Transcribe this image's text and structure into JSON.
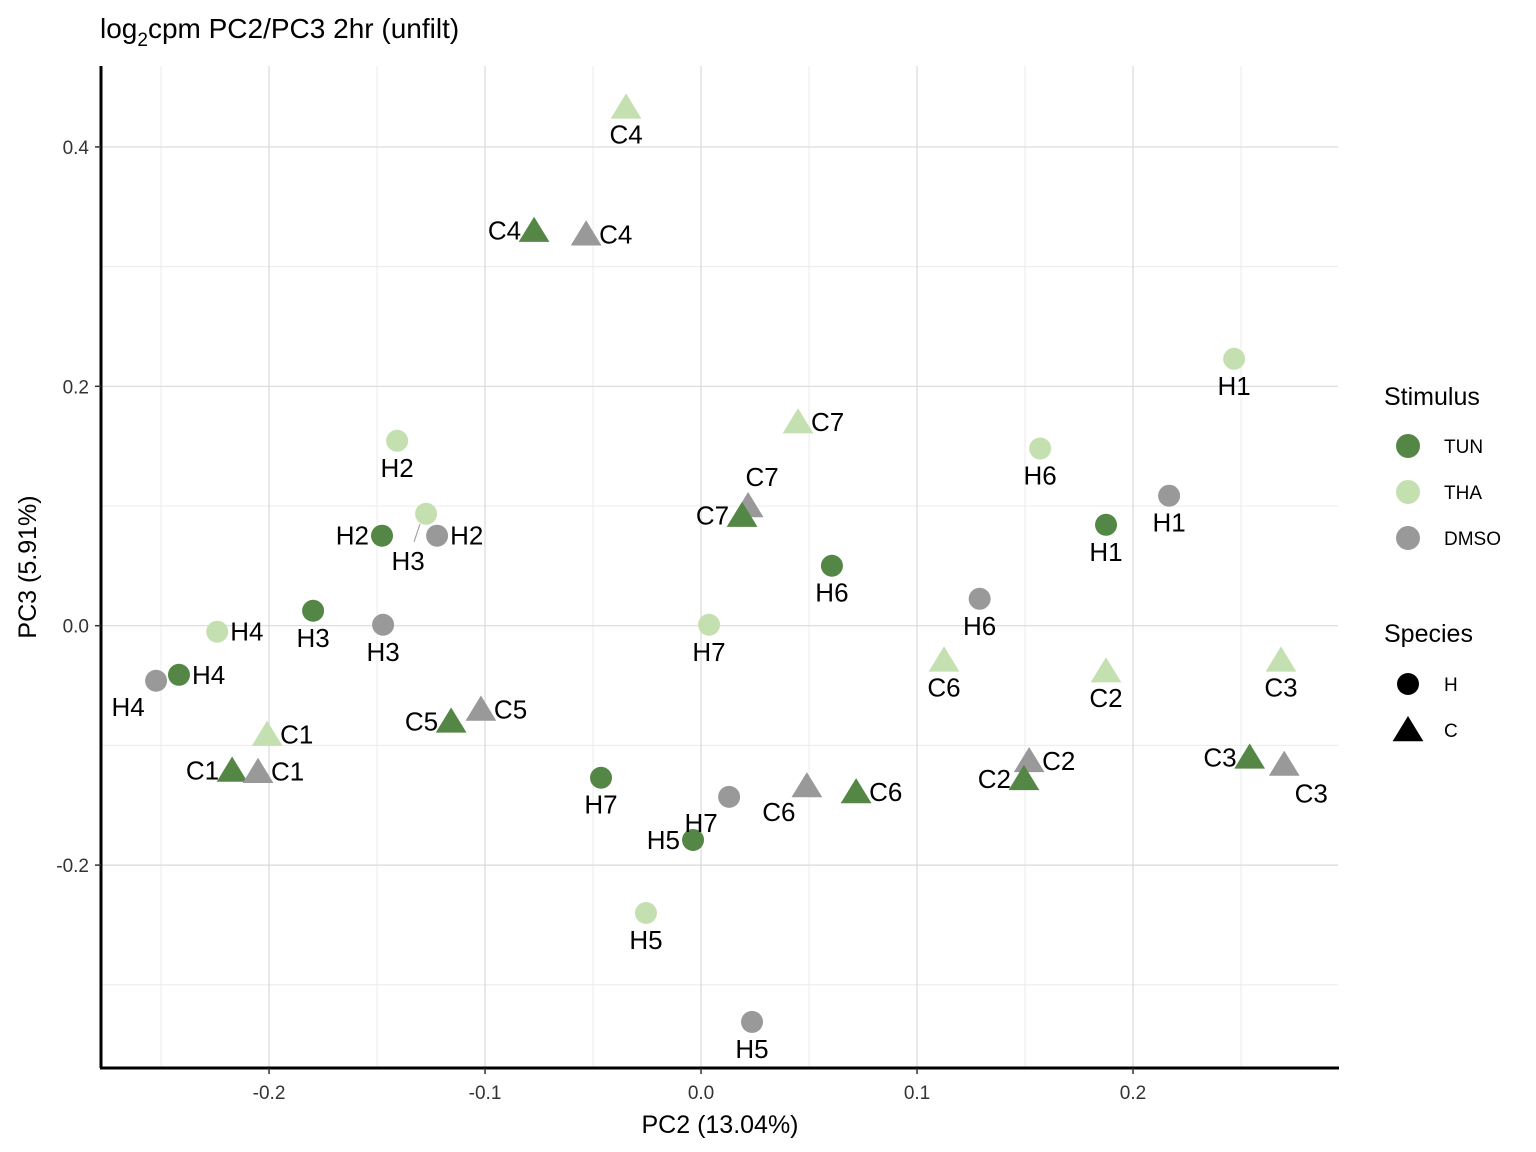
{
  "chart_data": {
    "type": "scatter",
    "title_prefix": "log",
    "title_sub": "2",
    "title_rest": "cpm PC2/PC3 2hr (unfilt)",
    "xlabel": "PC2 (13.04%)",
    "ylabel": "PC3 (5.91%)",
    "xlim": [
      -0.2778,
      0.2949
    ],
    "ylim": [
      -0.3695,
      0.4676
    ],
    "xticks": [
      -0.2,
      -0.1,
      0.0,
      0.1,
      0.2
    ],
    "xtick_labels": [
      "-0.2",
      "-0.1",
      "0.0",
      "0.1",
      "0.2"
    ],
    "yticks": [
      -0.2,
      0.0,
      0.2,
      0.4
    ],
    "ytick_labels": [
      "-0.2",
      "0.0",
      "0.2",
      "0.4"
    ],
    "grid": true,
    "legend_placement": "right",
    "legend": {
      "stimulus_title": "Stimulus",
      "stimulus": [
        {
          "name": "TUN",
          "color": "#548745"
        },
        {
          "name": "THA",
          "color": "#c5e0b0"
        },
        {
          "name": "DMSO",
          "color": "#999999"
        }
      ],
      "species_title": "Species",
      "species": [
        {
          "name": "H",
          "shape": "circle"
        },
        {
          "name": "C",
          "shape": "triangle"
        }
      ]
    },
    "points": [
      {
        "label": "C4",
        "stimulus": "THA",
        "species": "C",
        "x": -0.0347,
        "y": 0.433,
        "label_pos": "below"
      },
      {
        "label": "C4",
        "stimulus": "TUN",
        "species": "C",
        "x": -0.0773,
        "y": 0.33,
        "label_pos": "left"
      },
      {
        "label": "C4",
        "stimulus": "DMSO",
        "species": "C",
        "x": -0.0532,
        "y": 0.327,
        "label_pos": "right"
      },
      {
        "label": "H1",
        "stimulus": "THA",
        "species": "H",
        "x": 0.2468,
        "y": 0.223,
        "label_pos": "below"
      },
      {
        "label": "C7",
        "stimulus": "THA",
        "species": "C",
        "x": 0.0449,
        "y": 0.17,
        "label_pos": "right"
      },
      {
        "label": "H6",
        "stimulus": "THA",
        "species": "H",
        "x": 0.157,
        "y": 0.148,
        "label_pos": "below"
      },
      {
        "label": "H1",
        "stimulus": "DMSO",
        "species": "H",
        "x": 0.2167,
        "y": 0.1086,
        "label_pos": "below"
      },
      {
        "label": "H1",
        "stimulus": "TUN",
        "species": "H",
        "x": 0.1875,
        "y": 0.0843,
        "label_pos": "below"
      },
      {
        "label": "H2",
        "stimulus": "THA",
        "species": "H",
        "x": -0.1407,
        "y": 0.1545,
        "label_pos": "below"
      },
      {
        "label": "H3",
        "stimulus": "THA",
        "species": "H",
        "x": -0.1273,
        "y": 0.0935,
        "label_pos": "below-far"
      },
      {
        "label": "H2",
        "stimulus": "TUN",
        "species": "H",
        "x": -0.1477,
        "y": 0.0752,
        "label_pos": "left"
      },
      {
        "label": "H2",
        "stimulus": "DMSO",
        "species": "H",
        "x": -0.1222,
        "y": 0.0752,
        "label_pos": "right"
      },
      {
        "label": "C7",
        "stimulus": "DMSO",
        "species": "C",
        "x": 0.0218,
        "y": 0.1,
        "label_pos": "above"
      },
      {
        "label": "C7",
        "stimulus": "TUN",
        "species": "C",
        "x": 0.019,
        "y": 0.0919,
        "label_pos": "left"
      },
      {
        "label": "H6",
        "stimulus": "TUN",
        "species": "H",
        "x": 0.0606,
        "y": 0.0501,
        "label_pos": "below"
      },
      {
        "label": "H3",
        "stimulus": "TUN",
        "species": "H",
        "x": -0.1796,
        "y": 0.0125,
        "label_pos": "below"
      },
      {
        "label": "H3",
        "stimulus": "DMSO",
        "species": "H",
        "x": -0.1472,
        "y": 0.0008,
        "label_pos": "below"
      },
      {
        "label": "H4",
        "stimulus": "THA",
        "species": "H",
        "x": -0.224,
        "y": -0.005,
        "label_pos": "right"
      },
      {
        "label": "H7",
        "stimulus": "THA",
        "species": "H",
        "x": 0.0037,
        "y": 0.0008,
        "label_pos": "below"
      },
      {
        "label": "H6",
        "stimulus": "DMSO",
        "species": "H",
        "x": 0.129,
        "y": 0.0225,
        "label_pos": "below"
      },
      {
        "label": "C6",
        "stimulus": "THA",
        "species": "C",
        "x": 0.1125,
        "y": -0.029,
        "label_pos": "below"
      },
      {
        "label": "C2",
        "stimulus": "THA",
        "species": "C",
        "x": 0.1875,
        "y": -0.038,
        "label_pos": "below"
      },
      {
        "label": "C3",
        "stimulus": "THA",
        "species": "C",
        "x": 0.2685,
        "y": -0.029,
        "label_pos": "below"
      },
      {
        "label": "H4",
        "stimulus": "TUN",
        "species": "H",
        "x": -0.2417,
        "y": -0.041,
        "label_pos": "right"
      },
      {
        "label": "H4",
        "stimulus": "DMSO",
        "species": "H",
        "x": -0.2523,
        "y": -0.046,
        "label_pos": "below-left"
      },
      {
        "label": "C1",
        "stimulus": "THA",
        "species": "C",
        "x": -0.2009,
        "y": -0.091,
        "label_pos": "right"
      },
      {
        "label": "C5",
        "stimulus": "TUN",
        "species": "C",
        "x": -0.1157,
        "y": -0.08,
        "label_pos": "left"
      },
      {
        "label": "C5",
        "stimulus": "DMSO",
        "species": "C",
        "x": -0.1019,
        "y": -0.07,
        "label_pos": "right"
      },
      {
        "label": "C1",
        "stimulus": "TUN",
        "species": "C",
        "x": -0.2171,
        "y": -0.121,
        "label_pos": "left"
      },
      {
        "label": "C1",
        "stimulus": "DMSO",
        "species": "C",
        "x": -0.2051,
        "y": -0.122,
        "label_pos": "right"
      },
      {
        "label": "H7",
        "stimulus": "TUN",
        "species": "H",
        "x": -0.0463,
        "y": -0.127,
        "label_pos": "below"
      },
      {
        "label": "H7",
        "stimulus": "DMSO",
        "species": "H",
        "x": 0.013,
        "y": -0.143,
        "label_pos": "below-left"
      },
      {
        "label": "C6",
        "stimulus": "DMSO",
        "species": "C",
        "x": 0.049,
        "y": -0.134,
        "label_pos": "below-left"
      },
      {
        "label": "C6",
        "stimulus": "TUN",
        "species": "C",
        "x": 0.0718,
        "y": -0.139,
        "label_pos": "right"
      },
      {
        "label": "C2",
        "stimulus": "DMSO",
        "species": "C",
        "x": 0.1519,
        "y": -0.113,
        "label_pos": "right"
      },
      {
        "label": "C2",
        "stimulus": "TUN",
        "species": "C",
        "x": 0.1495,
        "y": -0.128,
        "label_pos": "left"
      },
      {
        "label": "C3",
        "stimulus": "TUN",
        "species": "C",
        "x": 0.254,
        "y": -0.11,
        "label_pos": "left"
      },
      {
        "label": "C3",
        "stimulus": "DMSO",
        "species": "C",
        "x": 0.27,
        "y": -0.116,
        "label_pos": "below-right"
      },
      {
        "label": "H5",
        "stimulus": "TUN",
        "species": "H",
        "x": -0.0037,
        "y": -0.179,
        "label_pos": "left"
      },
      {
        "label": "H5",
        "stimulus": "THA",
        "species": "H",
        "x": -0.0255,
        "y": -0.24,
        "label_pos": "below"
      },
      {
        "label": "H5",
        "stimulus": "DMSO",
        "species": "H",
        "x": 0.0236,
        "y": -0.331,
        "label_pos": "below"
      }
    ]
  }
}
